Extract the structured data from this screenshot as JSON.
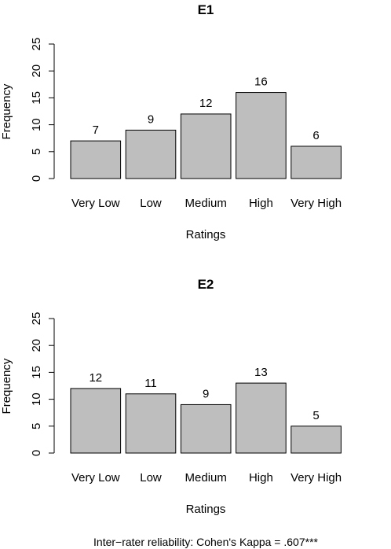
{
  "chart_data": [
    {
      "type": "bar",
      "title": "E1",
      "xlabel": "Ratings",
      "ylabel": "Frequency",
      "categories": [
        "Very Low",
        "Low",
        "Medium",
        "High",
        "Very High"
      ],
      "values": [
        7,
        9,
        12,
        16,
        6
      ],
      "ylim": [
        0,
        25
      ],
      "yticks": [
        "0",
        "5",
        "10",
        "15",
        "20",
        "25"
      ],
      "bar_color": "#bebebe",
      "grid": false
    },
    {
      "type": "bar",
      "title": "E2",
      "xlabel": "Ratings",
      "ylabel": "Frequency",
      "categories": [
        "Very Low",
        "Low",
        "Medium",
        "High",
        "Very High"
      ],
      "values": [
        12,
        11,
        9,
        13,
        5
      ],
      "ylim": [
        0,
        25
      ],
      "yticks": [
        "0",
        "5",
        "10",
        "15",
        "20",
        "25"
      ],
      "bar_color": "#bebebe",
      "grid": false
    }
  ],
  "footnote": "Inter−rater reliability: Cohen's Kappa = .607***"
}
